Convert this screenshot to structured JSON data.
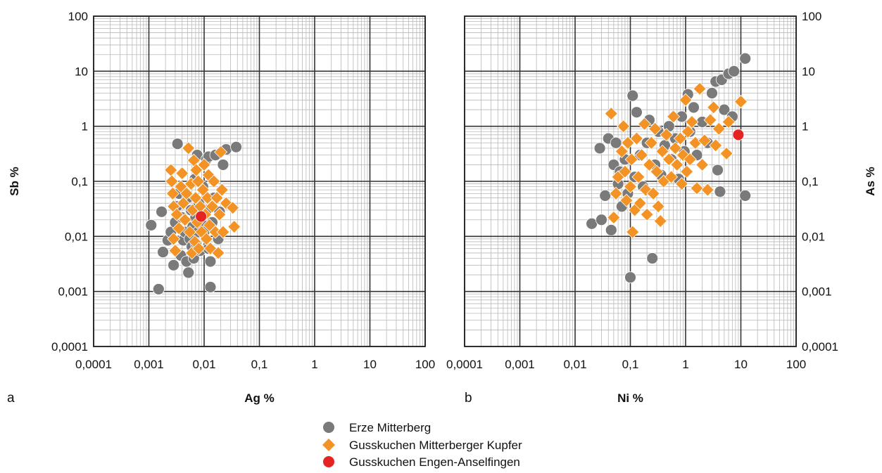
{
  "chart_data": [
    {
      "type": "scatter",
      "panel_label": "a",
      "xlabel": "Ag %",
      "ylabel": "Sb %",
      "xscale": "log",
      "yscale": "log",
      "xlim": [
        0.0001,
        100
      ],
      "ylim": [
        0.0001,
        100
      ],
      "xticks": [
        "0,0001",
        "0,001",
        "0,01",
        "0,1",
        "1",
        "10",
        "100"
      ],
      "yticks": [
        "0,0001",
        "0,001",
        "0,01",
        "0,1",
        "1",
        "10",
        "100"
      ],
      "ytick_side": "left",
      "grid": true,
      "series": [
        {
          "name": "Erze Mitterberg",
          "marker": "circle",
          "color": "#7a7a7a",
          "points": [
            [
              0.0011,
              0.016
            ],
            [
              0.0015,
              0.0011
            ],
            [
              0.0017,
              0.028
            ],
            [
              0.0018,
              0.0052
            ],
            [
              0.0022,
              0.0085
            ],
            [
              0.0025,
              0.012
            ],
            [
              0.0028,
              0.003
            ],
            [
              0.003,
              0.018
            ],
            [
              0.0032,
              0.035
            ],
            [
              0.0033,
              0.48
            ],
            [
              0.0035,
              0.06
            ],
            [
              0.0038,
              0.0045
            ],
            [
              0.004,
              0.022
            ],
            [
              0.0042,
              0.0085
            ],
            [
              0.0045,
              0.012
            ],
            [
              0.0048,
              0.0035
            ],
            [
              0.005,
              0.05
            ],
            [
              0.0052,
              0.0022
            ],
            [
              0.0055,
              0.009
            ],
            [
              0.0058,
              0.03
            ],
            [
              0.006,
              0.0065
            ],
            [
              0.0062,
              0.015
            ],
            [
              0.0065,
              0.004
            ],
            [
              0.0068,
              0.11
            ],
            [
              0.007,
              0.022
            ],
            [
              0.0072,
              0.007
            ],
            [
              0.0075,
              0.3
            ],
            [
              0.0078,
              0.012
            ],
            [
              0.008,
              0.04
            ],
            [
              0.0085,
              0.0055
            ],
            [
              0.009,
              0.018
            ],
            [
              0.0095,
              0.08
            ],
            [
              0.01,
              0.012
            ],
            [
              0.011,
              0.25
            ],
            [
              0.011,
              0.03
            ],
            [
              0.012,
              0.006
            ],
            [
              0.012,
              0.28
            ],
            [
              0.013,
              0.0012
            ],
            [
              0.013,
              0.0035
            ],
            [
              0.014,
              0.018
            ],
            [
              0.015,
              0.05
            ],
            [
              0.016,
              0.3
            ],
            [
              0.018,
              0.009
            ],
            [
              0.019,
              0.028
            ],
            [
              0.022,
              0.2
            ],
            [
              0.025,
              0.38
            ],
            [
              0.038,
              0.42
            ]
          ]
        },
        {
          "name": "Gusskuchen Mitterberger Kupfer",
          "marker": "diamond",
          "color": "#f39325",
          "points": [
            [
              0.0025,
              0.16
            ],
            [
              0.0026,
              0.1
            ],
            [
              0.0027,
              0.06
            ],
            [
              0.0028,
              0.035
            ],
            [
              0.0028,
              0.009
            ],
            [
              0.003,
              0.0055
            ],
            [
              0.0032,
              0.025
            ],
            [
              0.0035,
              0.014
            ],
            [
              0.0038,
              0.08
            ],
            [
              0.004,
              0.14
            ],
            [
              0.0042,
              0.04
            ],
            [
              0.0045,
              0.02
            ],
            [
              0.0048,
              0.06
            ],
            [
              0.0052,
              0.4
            ],
            [
              0.0055,
              0.012
            ],
            [
              0.0058,
              0.09
            ],
            [
              0.006,
              0.005
            ],
            [
              0.0062,
              0.03
            ],
            [
              0.0065,
              0.24
            ],
            [
              0.0068,
              0.008
            ],
            [
              0.007,
              0.05
            ],
            [
              0.0072,
              0.16
            ],
            [
              0.0075,
              0.018
            ],
            [
              0.0078,
              0.1
            ],
            [
              0.008,
              0.006
            ],
            [
              0.0085,
              0.035
            ],
            [
              0.009,
              0.012
            ],
            [
              0.0095,
              0.07
            ],
            [
              0.01,
              0.2
            ],
            [
              0.0105,
              0.025
            ],
            [
              0.011,
              0.009
            ],
            [
              0.0115,
              0.05
            ],
            [
              0.012,
              0.13
            ],
            [
              0.0125,
              0.016
            ],
            [
              0.013,
              0.006
            ],
            [
              0.014,
              0.035
            ],
            [
              0.015,
              0.1
            ],
            [
              0.016,
              0.012
            ],
            [
              0.017,
              0.05
            ],
            [
              0.018,
              0.005
            ],
            [
              0.019,
              0.025
            ],
            [
              0.02,
              0.34
            ],
            [
              0.021,
              0.07
            ],
            [
              0.022,
              0.012
            ],
            [
              0.025,
              0.04
            ],
            [
              0.033,
              0.033
            ],
            [
              0.035,
              0.015
            ]
          ]
        },
        {
          "name": "Gusskuchen Engen-Anselfingen",
          "marker": "circle",
          "color": "#e52421",
          "points": [
            [
              0.0088,
              0.023
            ]
          ]
        }
      ]
    },
    {
      "type": "scatter",
      "panel_label": "b",
      "xlabel": "Ni %",
      "ylabel": "As %",
      "xscale": "log",
      "yscale": "log",
      "xlim": [
        0.0001,
        100
      ],
      "ylim": [
        0.0001,
        100
      ],
      "xticks": [
        "0,0001",
        "0,001",
        "0,01",
        "0,1",
        "1",
        "10",
        "100"
      ],
      "yticks": [
        "0,0001",
        "0,001",
        "0,01",
        "0,1",
        "1",
        "10",
        "100"
      ],
      "ytick_side": "right",
      "grid": true,
      "series": [
        {
          "name": "Erze Mitterberg",
          "marker": "circle",
          "color": "#7a7a7a",
          "points": [
            [
              0.02,
              0.017
            ],
            [
              0.028,
              0.4
            ],
            [
              0.03,
              0.02
            ],
            [
              0.035,
              0.055
            ],
            [
              0.04,
              0.6
            ],
            [
              0.045,
              0.013
            ],
            [
              0.05,
              0.2
            ],
            [
              0.055,
              0.5
            ],
            [
              0.06,
              0.09
            ],
            [
              0.065,
              0.15
            ],
            [
              0.07,
              0.035
            ],
            [
              0.08,
              0.25
            ],
            [
              0.09,
              0.06
            ],
            [
              0.1,
              0.0018
            ],
            [
              0.11,
              3.6
            ],
            [
              0.12,
              0.12
            ],
            [
              0.13,
              1.8
            ],
            [
              0.15,
              0.3
            ],
            [
              0.17,
              0.08
            ],
            [
              0.2,
              0.5
            ],
            [
              0.22,
              1.3
            ],
            [
              0.25,
              0.004
            ],
            [
              0.28,
              0.2
            ],
            [
              0.32,
              0.8
            ],
            [
              0.36,
              0.13
            ],
            [
              0.42,
              0.45
            ],
            [
              0.5,
              1.0
            ],
            [
              0.55,
              0.25
            ],
            [
              0.65,
              0.6
            ],
            [
              0.75,
              0.11
            ],
            [
              0.85,
              1.5
            ],
            [
              0.95,
              0.35
            ],
            [
              1.1,
              3.8
            ],
            [
              1.2,
              0.8
            ],
            [
              1.4,
              2.2
            ],
            [
              1.6,
              0.3
            ],
            [
              2.0,
              1.2
            ],
            [
              2.5,
              0.5
            ],
            [
              3.0,
              4.0
            ],
            [
              3.5,
              6.5
            ],
            [
              3.8,
              0.16
            ],
            [
              4.2,
              0.065
            ],
            [
              4.5,
              7.0
            ],
            [
              5.0,
              2.0
            ],
            [
              6.0,
              9.0
            ],
            [
              7.0,
              1.5
            ],
            [
              7.5,
              10.0
            ],
            [
              12.0,
              17.0
            ],
            [
              12.0,
              0.055
            ]
          ]
        },
        {
          "name": "Gusskuchen Mitterberger Kupfer",
          "marker": "diamond",
          "color": "#f39325",
          "points": [
            [
              0.045,
              1.7
            ],
            [
              0.05,
              0.022
            ],
            [
              0.055,
              0.06
            ],
            [
              0.06,
              0.12
            ],
            [
              0.07,
              0.35
            ],
            [
              0.075,
              1.0
            ],
            [
              0.08,
              0.15
            ],
            [
              0.085,
              0.045
            ],
            [
              0.09,
              0.5
            ],
            [
              0.1,
              0.08
            ],
            [
              0.105,
              0.25
            ],
            [
              0.11,
              0.012
            ],
            [
              0.12,
              0.03
            ],
            [
              0.13,
              0.6
            ],
            [
              0.14,
              0.12
            ],
            [
              0.15,
              0.04
            ],
            [
              0.16,
              0.3
            ],
            [
              0.18,
              1.1
            ],
            [
              0.19,
              0.07
            ],
            [
              0.2,
              0.025
            ],
            [
              0.22,
              0.2
            ],
            [
              0.24,
              0.5
            ],
            [
              0.26,
              0.06
            ],
            [
              0.28,
              0.9
            ],
            [
              0.3,
              0.15
            ],
            [
              0.32,
              0.035
            ],
            [
              0.35,
              0.019
            ],
            [
              0.38,
              0.35
            ],
            [
              0.4,
              0.1
            ],
            [
              0.45,
              0.7
            ],
            [
              0.5,
              0.25
            ],
            [
              0.55,
              0.12
            ],
            [
              0.6,
              1.5
            ],
            [
              0.65,
              0.4
            ],
            [
              0.7,
              0.2
            ],
            [
              0.8,
              0.6
            ],
            [
              0.85,
              0.09
            ],
            [
              0.9,
              0.3
            ],
            [
              1.0,
              3.0
            ],
            [
              1.05,
              0.15
            ],
            [
              1.1,
              0.8
            ],
            [
              1.2,
              0.25
            ],
            [
              1.3,
              1.2
            ],
            [
              1.5,
              0.5
            ],
            [
              1.6,
              0.075
            ],
            [
              1.8,
              4.8
            ],
            [
              2.0,
              0.2
            ],
            [
              2.2,
              0.55
            ],
            [
              2.5,
              0.07
            ],
            [
              2.8,
              1.3
            ],
            [
              3.2,
              2.2
            ],
            [
              3.5,
              0.45
            ],
            [
              4.0,
              0.9
            ],
            [
              5.5,
              0.32
            ],
            [
              6.0,
              1.2
            ],
            [
              10.0,
              2.8
            ]
          ]
        },
        {
          "name": "Gusskuchen Engen-Anselfingen",
          "marker": "circle",
          "color": "#e52421",
          "points": [
            [
              9.0,
              0.7
            ]
          ]
        }
      ]
    }
  ],
  "legend": [
    {
      "label": "Erze Mitterberg",
      "marker": "circle",
      "color": "#7a7a7a"
    },
    {
      "label": "Gusskuchen Mitterberger Kupfer",
      "marker": "diamond",
      "color": "#f39325"
    },
    {
      "label": "Gusskuchen Engen-Anselfingen",
      "marker": "circle",
      "color": "#e52421"
    }
  ]
}
